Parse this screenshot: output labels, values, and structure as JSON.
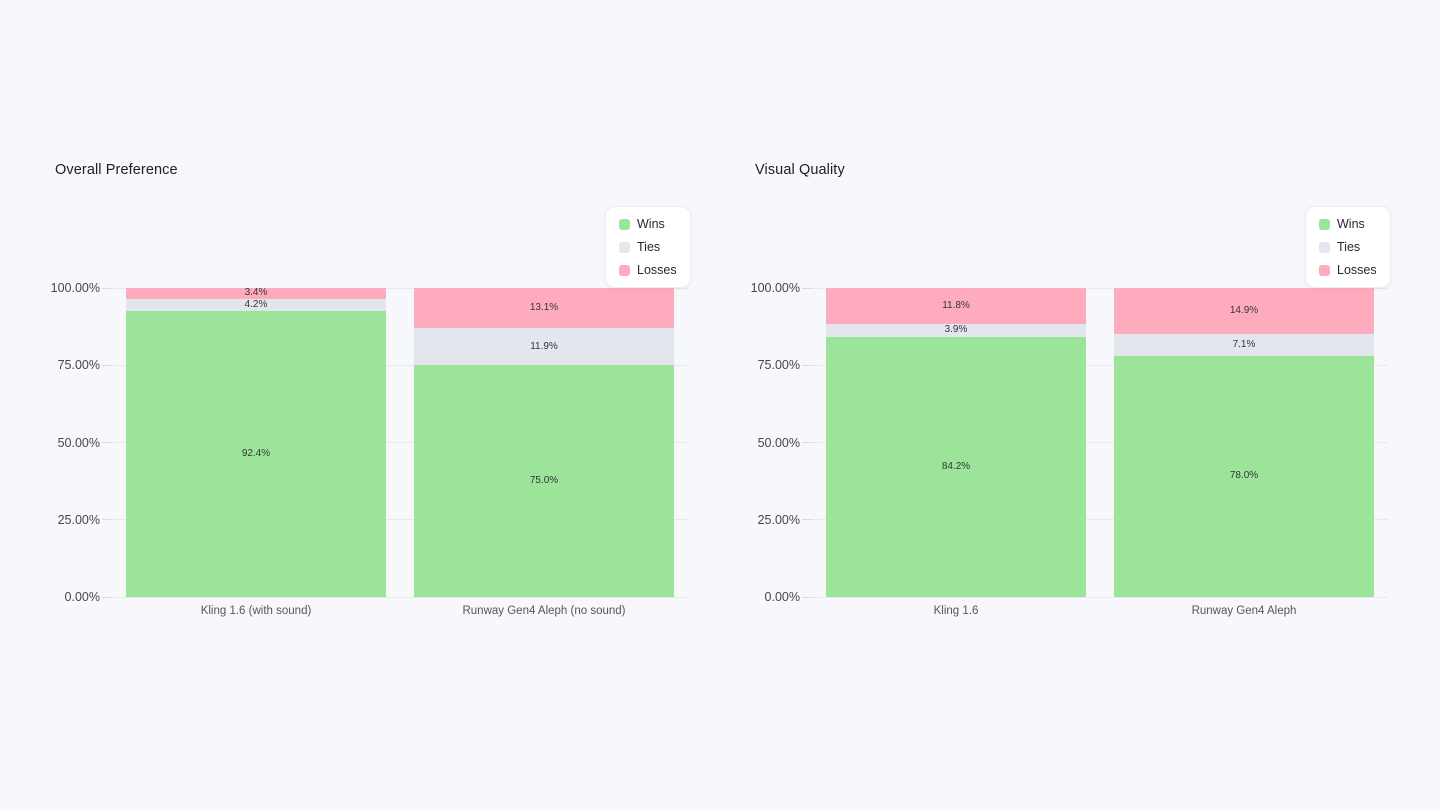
{
  "page": {
    "background_color": "#F7F8FB"
  },
  "chart_data": [
    {
      "type": "bar",
      "stacked": true,
      "title": "Overall Preference",
      "categories": [
        "Kling 1.6 (with sound)",
        "Runway Gen4 Aleph (no sound)"
      ],
      "series": [
        {
          "name": "Wins",
          "color": "#9CE49A",
          "values": [
            92.4,
            75.0
          ]
        },
        {
          "name": "Ties",
          "color": "#E3E6ED",
          "values": [
            4.2,
            11.9
          ]
        },
        {
          "name": "Losses",
          "color": "#FFABBE",
          "values": [
            3.4,
            13.1
          ]
        }
      ],
      "segment_labels": [
        [
          "92.4%",
          "4.2%",
          "3.4%"
        ],
        [
          "75.0%",
          "11.9%",
          "13.1%"
        ]
      ],
      "y_axis": {
        "ticks": [
          {
            "value": 100,
            "label": "100.00%"
          },
          {
            "value": 75,
            "label": "75.00%"
          },
          {
            "value": 50,
            "label": "50.00%"
          },
          {
            "value": 25,
            "label": "25.00%"
          },
          {
            "value": 0,
            "label": "0.00%"
          }
        ]
      },
      "ylim": [
        0,
        100
      ],
      "grid": true,
      "legend_position": "top-right"
    },
    {
      "type": "bar",
      "stacked": true,
      "title": "Visual Quality",
      "categories": [
        "Kling 1.6",
        "Runway Gen4 Aleph"
      ],
      "series": [
        {
          "name": "Wins",
          "color": "#9CE49A",
          "values": [
            84.2,
            78.0
          ]
        },
        {
          "name": "Ties",
          "color": "#E3E6ED",
          "values": [
            3.9,
            7.1
          ]
        },
        {
          "name": "Losses",
          "color": "#FFABBE",
          "values": [
            11.8,
            14.9
          ]
        }
      ],
      "segment_labels": [
        [
          "84.2%",
          "3.9%",
          "11.8%"
        ],
        [
          "78.0%",
          "7.1%",
          "14.9%"
        ]
      ],
      "y_axis": {
        "ticks": [
          {
            "value": 100,
            "label": "100.00%"
          },
          {
            "value": 75,
            "label": "75.00%"
          },
          {
            "value": 50,
            "label": "50.00%"
          },
          {
            "value": 25,
            "label": "25.00%"
          },
          {
            "value": 0,
            "label": "0.00%"
          }
        ]
      },
      "ylim": [
        0,
        100
      ],
      "grid": true,
      "legend_position": "top-right"
    }
  ]
}
